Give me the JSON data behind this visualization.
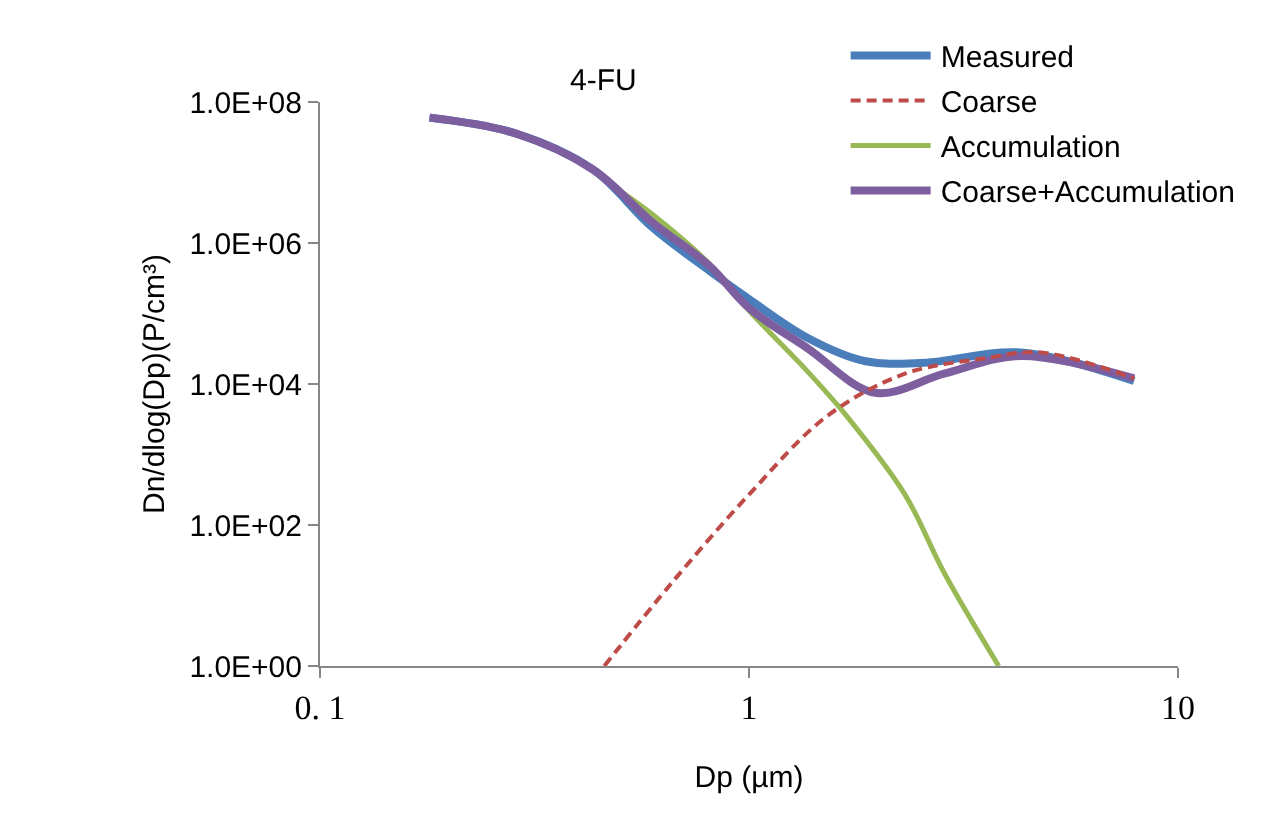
{
  "chart_data": {
    "type": "line",
    "xlabel": "Dp (µm)",
    "ylabel": "Dn/dlog(Dp)(P/cm³)",
    "annotations": [
      "4-FU"
    ],
    "log": "xy",
    "xlim": [
      0.1,
      10
    ],
    "xticks": [
      {
        "value": 0.1,
        "label": "0. 1"
      },
      1,
      10
    ],
    "ylim": [
      1,
      100000000
    ],
    "yticks": [
      {
        "value": 1,
        "label": "1.0E+00"
      },
      {
        "value": 100,
        "label": "1.0E+02"
      },
      {
        "value": 10000,
        "label": "1.0E+04"
      },
      {
        "value": 1000000,
        "label": "1.0E+06"
      },
      {
        "value": 100000000,
        "label": "1.0E+08"
      }
    ],
    "legend": "top right",
    "marker": "none",
    "series": [
      {
        "name": "Measured",
        "color": "#4a7ebb",
        "line_style": "solid",
        "x": [
          0.18,
          0.285,
          0.433,
          0.593,
          0.81,
          1,
          1.37,
          1.87,
          2.56,
          4.3,
          7.9
        ],
        "values": [
          60000000,
          36000000,
          11000000,
          1700000,
          400000,
          160000,
          45000,
          21000,
          20000,
          28000,
          11000
        ]
      },
      {
        "name": "Coarse",
        "color": "#be4b48",
        "line_style": "dashed",
        "x": [
          0.46,
          0.66,
          1,
          1.52,
          2.31,
          3.51,
          4.8,
          7.9
        ],
        "values": [
          1,
          15,
          270,
          3500,
          14000,
          23000,
          28000,
          12000
        ]
      },
      {
        "name": "Accumulation",
        "color": "#98b954",
        "line_style": "solid",
        "x": [
          0.5,
          0.593,
          0.81,
          1,
          1.37,
          1.69,
          2.31,
          2.85,
          3.82
        ],
        "values": [
          5500000,
          2600000,
          500000,
          110000,
          15000,
          3500,
          270,
          21,
          1
        ]
      },
      {
        "name": "Coarse+Accumulation",
        "color": "#7d5fa0",
        "line_style": "solid",
        "x": [
          0.18,
          0.285,
          0.433,
          0.593,
          0.81,
          1,
          1.37,
          1.97,
          2.85,
          4.3,
          7.9
        ],
        "values": [
          60000000,
          36000000,
          11000000,
          2000000,
          470000,
          120000,
          32000,
          7500,
          14000,
          25000,
          12000
        ]
      }
    ]
  }
}
